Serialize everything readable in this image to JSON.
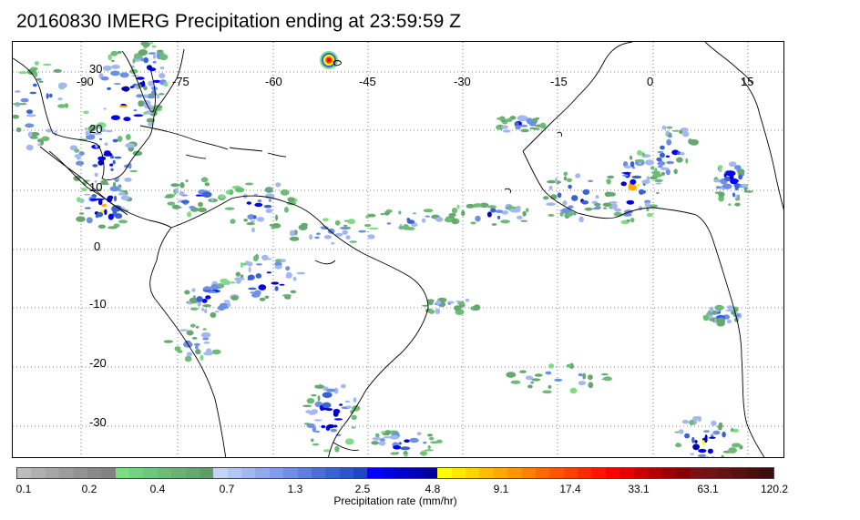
{
  "title": "20160830 IMERG Precipitation ending at 23:59:59 Z",
  "map": {
    "lon_labels": [
      "-90",
      "-75",
      "-60",
      "-45",
      "-30",
      "-15",
      "0",
      "15"
    ],
    "lat_labels": [
      "30",
      "20",
      "10",
      "0",
      "-10",
      "-20",
      "-30"
    ],
    "gridlines": "dotted",
    "coastline_color": "#000000"
  },
  "colorbar": {
    "tick_labels": [
      "0.1",
      "0.2",
      "0.4",
      "0.7",
      "1.3",
      "2.5",
      "4.8",
      "9.1",
      "17.4",
      "33.1",
      "63.1",
      "120.2"
    ],
    "label": "Precipitation rate (mm/hr)",
    "colors": [
      "#bdbdbd",
      "#b0b0b0",
      "#a6a6a6",
      "#9c9c9c",
      "#939393",
      "#8a8a8a",
      "#828282",
      "#7ddc84",
      "#74d17e",
      "#70c67a",
      "#6cbc76",
      "#69b273",
      "#66a86f",
      "#5f9d68",
      "#c6d3f7",
      "#b4c6f4",
      "#a3b8f0",
      "#91aaec",
      "#7f9de8",
      "#6e90e4",
      "#5b80dd",
      "#4a70d8",
      "#3b62d2",
      "#2d54cc",
      "#1f46c6",
      "#0000ff",
      "#0000e6",
      "#0000cd",
      "#0000b4",
      "#00009c",
      "#ffff00",
      "#ffea00",
      "#ffd500",
      "#ffbf00",
      "#ffaa00",
      "#ff9500",
      "#ff8000",
      "#ff6a00",
      "#ff5500",
      "#ff4000",
      "#ff2a00",
      "#ff1500",
      "#ff0000",
      "#e60000",
      "#cd0000",
      "#b40000",
      "#9c0000",
      "#8b0000",
      "#7a1010",
      "#6e1414",
      "#621414",
      "#561212",
      "#4a1010",
      "#3e0e0e"
    ]
  }
}
